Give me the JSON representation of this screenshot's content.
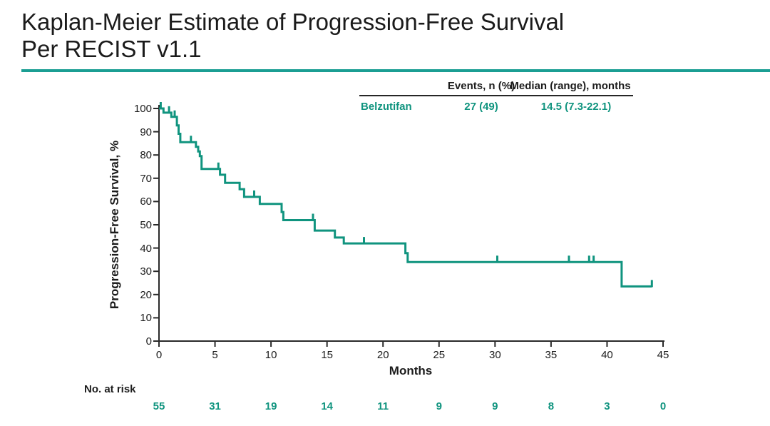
{
  "slide": {
    "title_line1": "Kaplan-Meier Estimate of Progression-Free Survival",
    "title_line2": "Per RECIST v1.1"
  },
  "colors": {
    "accent_teal": "#10947f",
    "rule_teal": "#1b9e93",
    "axis_black": "#2a2a2a"
  },
  "summary_table": {
    "col_headers": [
      "Events, n (%)",
      "Median (range), months"
    ],
    "row": {
      "label": "Belzutifan",
      "events": "27 (49)",
      "median": "14.5 (7.3-22.1)"
    }
  },
  "chart_data": {
    "type": "line",
    "subtype": "kaplan-meier-step",
    "title": "Kaplan-Meier Estimate of Progression-Free Survival Per RECIST v1.1",
    "xlabel": "Months",
    "ylabel": "Progression-Free Survival, %",
    "xlim": [
      0,
      45
    ],
    "ylim": [
      0,
      100
    ],
    "xticks": [
      0,
      5,
      10,
      15,
      20,
      25,
      30,
      35,
      40,
      45
    ],
    "yticks": [
      0,
      10,
      20,
      30,
      40,
      50,
      60,
      70,
      80,
      90,
      100
    ],
    "grid": false,
    "series": [
      {
        "name": "Belzutifan",
        "events_n_pct": "27 (49)",
        "median_range_months": "14.5 (7.3-22.1)",
        "steps": [
          [
            0,
            100
          ],
          [
            0.4,
            100
          ],
          [
            0.4,
            98.2
          ],
          [
            1.1,
            98.2
          ],
          [
            1.1,
            96.4
          ],
          [
            1.6,
            96.4
          ],
          [
            1.6,
            92.7
          ],
          [
            1.75,
            92.7
          ],
          [
            1.75,
            89.1
          ],
          [
            1.9,
            89.1
          ],
          [
            1.9,
            85.5
          ],
          [
            3.3,
            85.5
          ],
          [
            3.3,
            83.5
          ],
          [
            3.5,
            83.5
          ],
          [
            3.5,
            81.5
          ],
          [
            3.65,
            81.5
          ],
          [
            3.65,
            79.5
          ],
          [
            3.8,
            79.5
          ],
          [
            3.8,
            74
          ],
          [
            5.45,
            74
          ],
          [
            5.45,
            71.5
          ],
          [
            5.9,
            71.5
          ],
          [
            5.9,
            68
          ],
          [
            7.2,
            68
          ],
          [
            7.2,
            65.3
          ],
          [
            7.6,
            65.3
          ],
          [
            7.6,
            62
          ],
          [
            9.0,
            62
          ],
          [
            9.0,
            59
          ],
          [
            10.95,
            59
          ],
          [
            10.95,
            55.5
          ],
          [
            11.1,
            55.5
          ],
          [
            11.1,
            52
          ],
          [
            13.9,
            52
          ],
          [
            13.9,
            47.5
          ],
          [
            15.7,
            47.5
          ],
          [
            15.7,
            44.5
          ],
          [
            16.5,
            44.5
          ],
          [
            16.5,
            42
          ],
          [
            22.0,
            42
          ],
          [
            22.0,
            37.8
          ],
          [
            22.2,
            37.8
          ],
          [
            22.2,
            34
          ],
          [
            41.3,
            34
          ],
          [
            41.3,
            23.5
          ],
          [
            44.0,
            23.5
          ]
        ],
        "censor_marks": [
          [
            0.15,
            100
          ],
          [
            0.9,
            98.2
          ],
          [
            1.4,
            96.4
          ],
          [
            2.85,
            85.5
          ],
          [
            5.3,
            74
          ],
          [
            8.5,
            62
          ],
          [
            13.75,
            52
          ],
          [
            18.3,
            42
          ],
          [
            30.2,
            34
          ],
          [
            36.6,
            34
          ],
          [
            38.4,
            34
          ],
          [
            38.8,
            34
          ],
          [
            44.0,
            23.5
          ]
        ]
      }
    ],
    "at_risk": {
      "label": "No. at risk",
      "times": [
        0,
        5,
        10,
        15,
        20,
        25,
        30,
        35,
        40,
        45
      ],
      "counts": [
        55,
        31,
        19,
        14,
        11,
        9,
        9,
        8,
        3,
        0
      ]
    }
  }
}
